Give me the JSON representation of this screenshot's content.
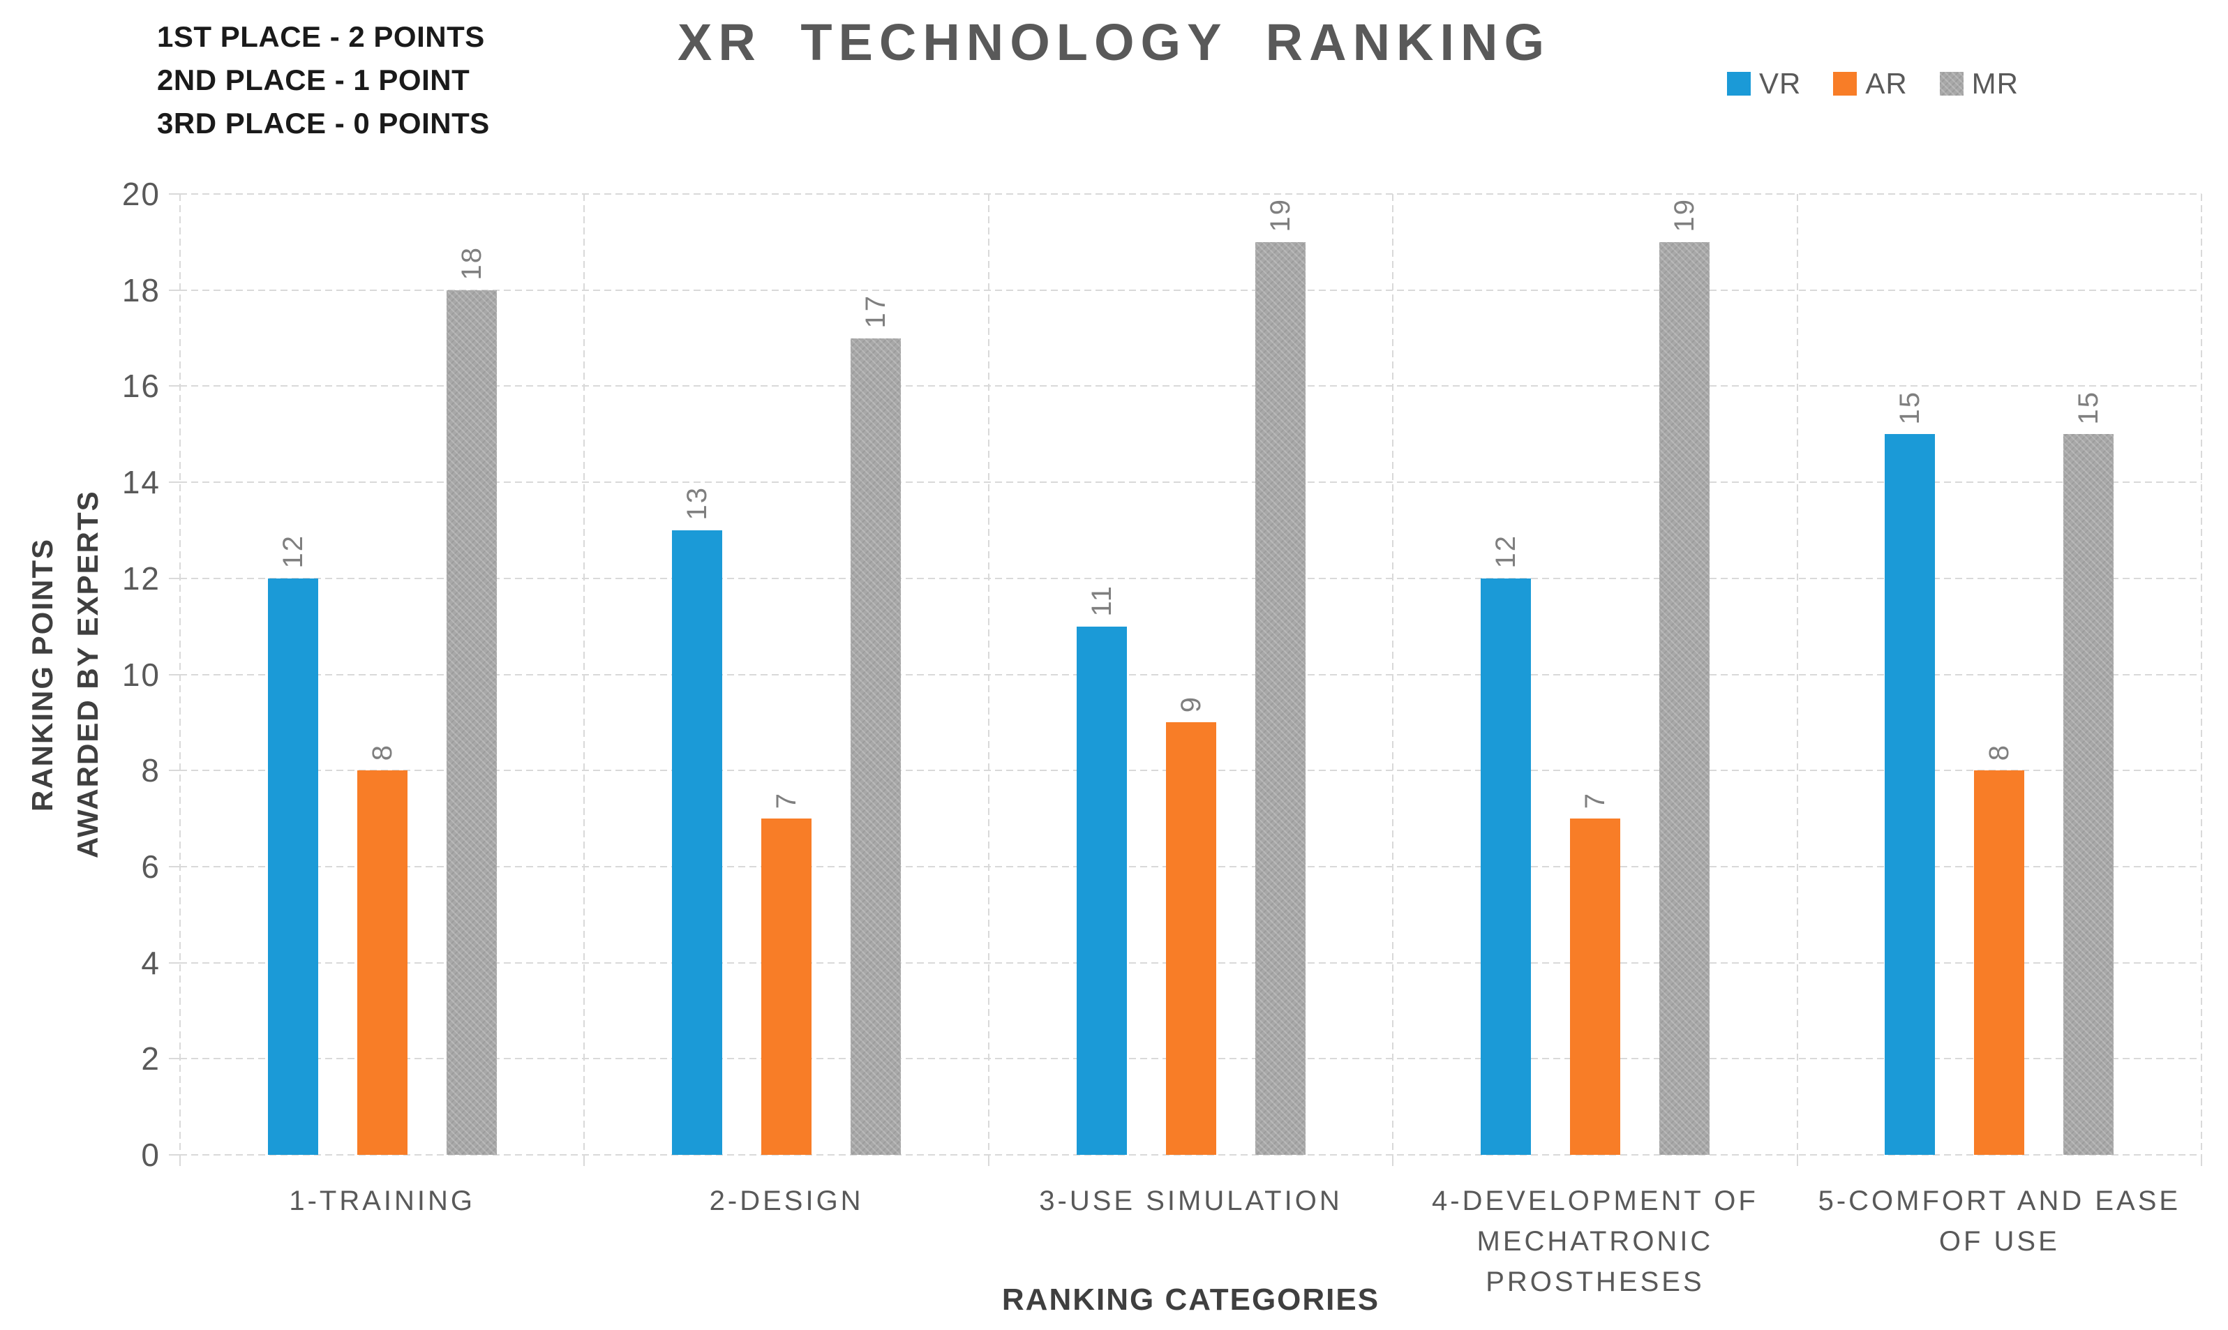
{
  "annotation": {
    "lines": [
      "1ST PLACE - 2 POINTS",
      "2ND PLACE - 1 POINT",
      "3RD PLACE - 0 POINTS"
    ]
  },
  "title": "XR TECHNOLOGY RANKING",
  "legend": [
    {
      "label": "VR",
      "color": "#1b9ad7"
    },
    {
      "label": "AR",
      "color": "#f87d27"
    },
    {
      "label": "MR",
      "color": "#a8a8a8"
    }
  ],
  "colors": {
    "vr": "#1b9ad7",
    "ar": "#f87d27",
    "mr": "#a8a8a8",
    "gridline": "#d9d9d9",
    "title_text": "#595959",
    "axis_text": "#595959",
    "data_label_text": "#7f7f7f",
    "annotation_text": "#1a1a1a"
  },
  "chart_data": {
    "type": "bar",
    "title": "XR TECHNOLOGY RANKING",
    "xlabel": "RANKING CATEGORIES",
    "ylabel": "RANKING POINTS AWARDED BY EXPERTS",
    "ylabel_lines": [
      "RANKING POINTS",
      "AWARDED BY EXPERTS"
    ],
    "categories": [
      "1-TRAINING",
      "2-DESIGN",
      "3-USE SIMULATION",
      "4-DEVELOPMENT OF MECHATRONIC PROSTHESES",
      "5-COMFORT AND EASE OF USE"
    ],
    "categories_lines": [
      [
        "1-TRAINING"
      ],
      [
        "2-DESIGN"
      ],
      [
        "3-USE SIMULATION"
      ],
      [
        "4-DEVELOPMENT OF",
        "MECHATRONIC",
        "PROSTHESES"
      ],
      [
        "5-COMFORT AND EASE",
        "OF USE"
      ]
    ],
    "series": [
      {
        "name": "VR",
        "color": "#1b9ad7",
        "values": [
          12,
          13,
          11,
          12,
          15
        ]
      },
      {
        "name": "AR",
        "color": "#f87d27",
        "values": [
          8,
          7,
          9,
          7,
          8
        ]
      },
      {
        "name": "MR",
        "color": "#a8a8a8",
        "values": [
          18,
          17,
          19,
          19,
          15
        ]
      }
    ],
    "ylim": [
      0,
      20
    ],
    "yticks": [
      0,
      2,
      4,
      6,
      8,
      10,
      12,
      14,
      16,
      18,
      20
    ],
    "grid": true,
    "gridline_style": "dashed",
    "legend_position": "top-right",
    "data_labels_rotation_deg": -90
  }
}
